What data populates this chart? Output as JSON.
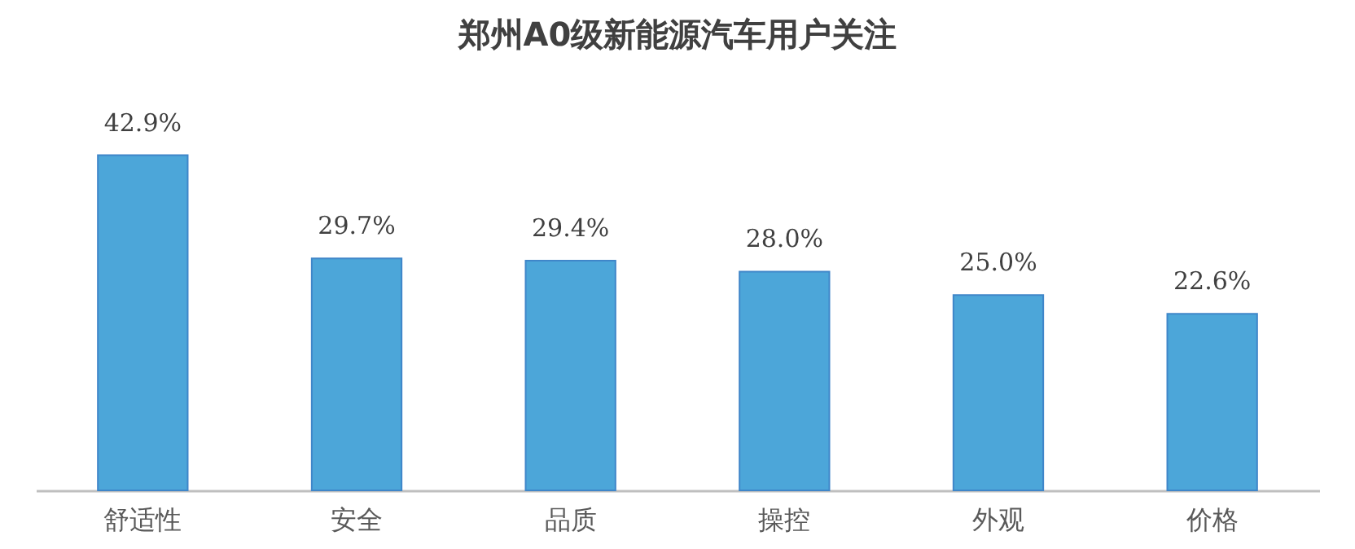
{
  "chart_data": {
    "type": "bar",
    "title": "郑州A0级新能源汽车用户关注",
    "categories": [
      "舒适性",
      "安全",
      "品质",
      "操控",
      "外观",
      "价格"
    ],
    "values": [
      42.9,
      29.7,
      29.4,
      28.0,
      25.0,
      22.6
    ],
    "value_labels": [
      "42.9%",
      "29.7%",
      "29.4%",
      "28.0%",
      "25.0%",
      "22.6%"
    ],
    "color": "#4ca6d9",
    "tick_labels": "x"
  }
}
